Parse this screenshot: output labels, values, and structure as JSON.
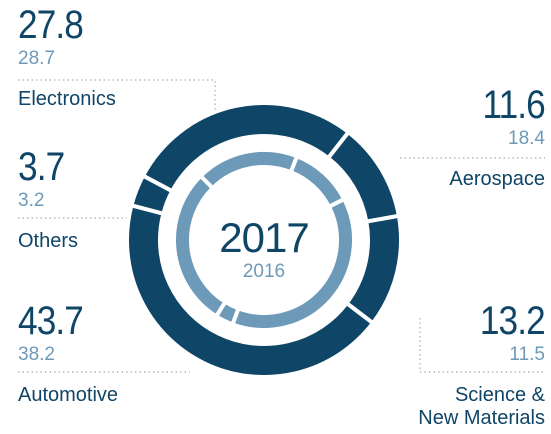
{
  "chart_data": {
    "type": "donut",
    "categories": [
      "Electronics",
      "Aerospace",
      "Science &\nNew Materials",
      "Automotive",
      "Others"
    ],
    "series": [
      {
        "name": "2017",
        "color": "#0f4566",
        "values": [
          27.8,
          11.6,
          13.2,
          43.7,
          3.7
        ]
      },
      {
        "name": "2016",
        "color": "#6d9ab8",
        "values": [
          28.7,
          18.4,
          11.5,
          38.2,
          3.2
        ]
      }
    ]
  }
}
